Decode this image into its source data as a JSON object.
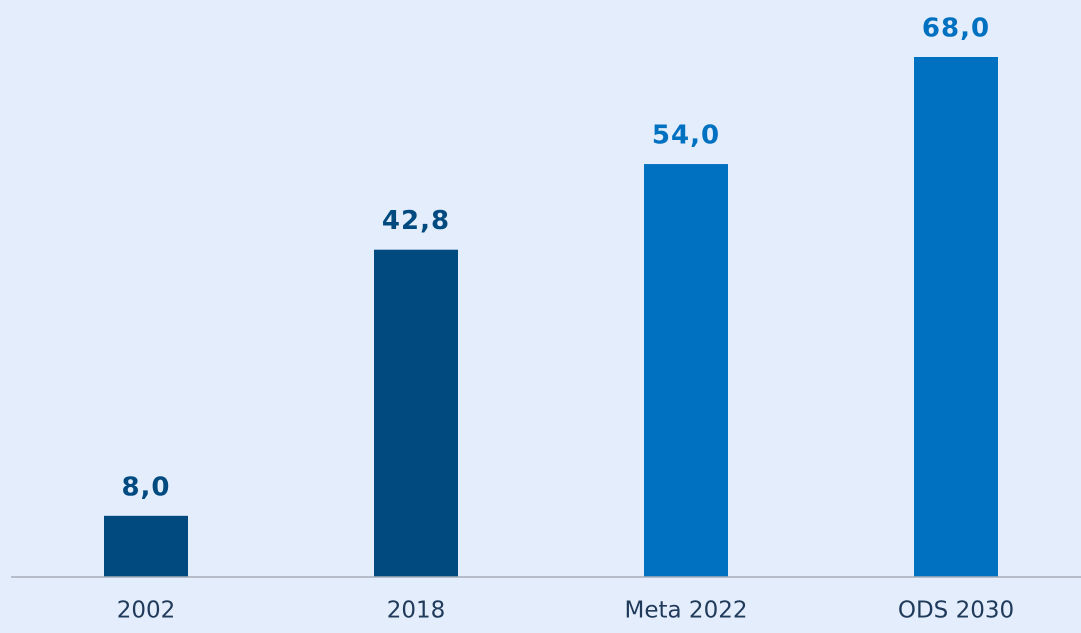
{
  "chart_data": {
    "type": "bar",
    "categories": [
      "2002",
      "2018",
      "Meta 2022",
      "ODS 2030"
    ],
    "values": [
      8.0,
      42.8,
      54.0,
      68.0
    ],
    "value_labels": [
      "8,0",
      "42,8",
      "54,0",
      "68,0"
    ],
    "colors": [
      "#004a80",
      "#004a80",
      "#0070c0",
      "#0070c0"
    ]
  }
}
